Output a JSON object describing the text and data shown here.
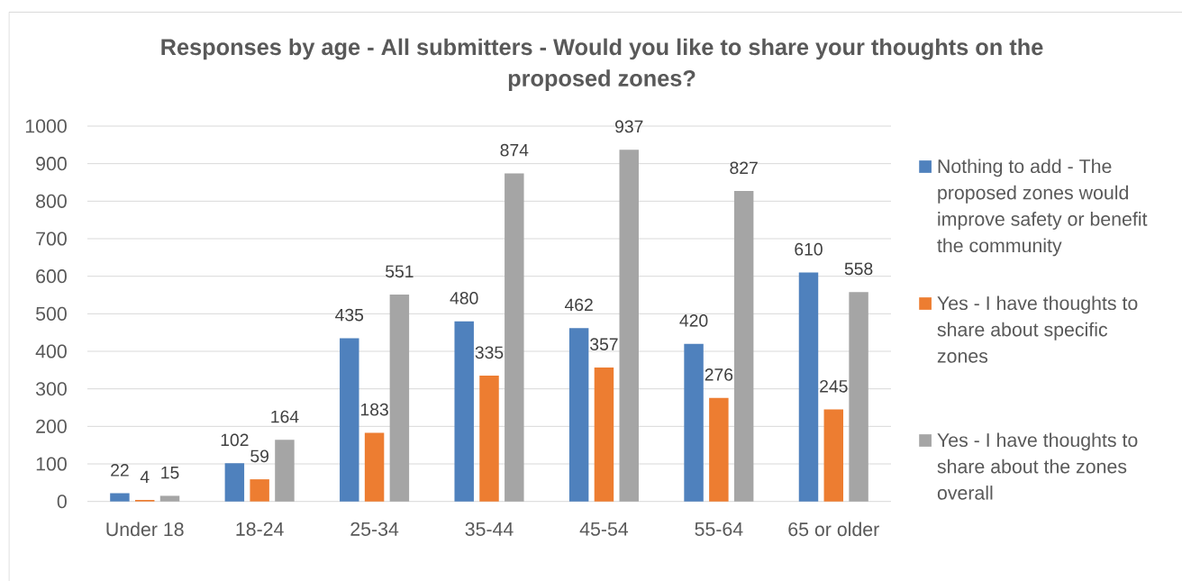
{
  "chart_data": {
    "type": "bar",
    "title": "Responses by age - All submitters - Would you like to share your thoughts on the proposed zones?",
    "categories": [
      "Under 18",
      "18-24",
      "25-34",
      "35-44",
      "45-54",
      "55-64",
      "65 or older"
    ],
    "series": [
      {
        "name": "Nothing to add - The proposed zones would improve safety or benefit the community",
        "color": "#4f81bd",
        "values": [
          22,
          102,
          435,
          480,
          462,
          420,
          610
        ]
      },
      {
        "name": "Yes - I have thoughts to share about specific zones",
        "color": "#ed7d31",
        "values": [
          4,
          59,
          183,
          335,
          357,
          276,
          245
        ]
      },
      {
        "name": "Yes - I have thoughts to share about the zones overall",
        "color": "#a5a5a5",
        "values": [
          15,
          164,
          551,
          874,
          937,
          827,
          558
        ]
      }
    ],
    "ylim": [
      0,
      1000
    ],
    "yticks": [
      0,
      100,
      200,
      300,
      400,
      500,
      600,
      700,
      800,
      900,
      1000
    ],
    "grid": "y",
    "legend": "right",
    "data_labels": true
  }
}
